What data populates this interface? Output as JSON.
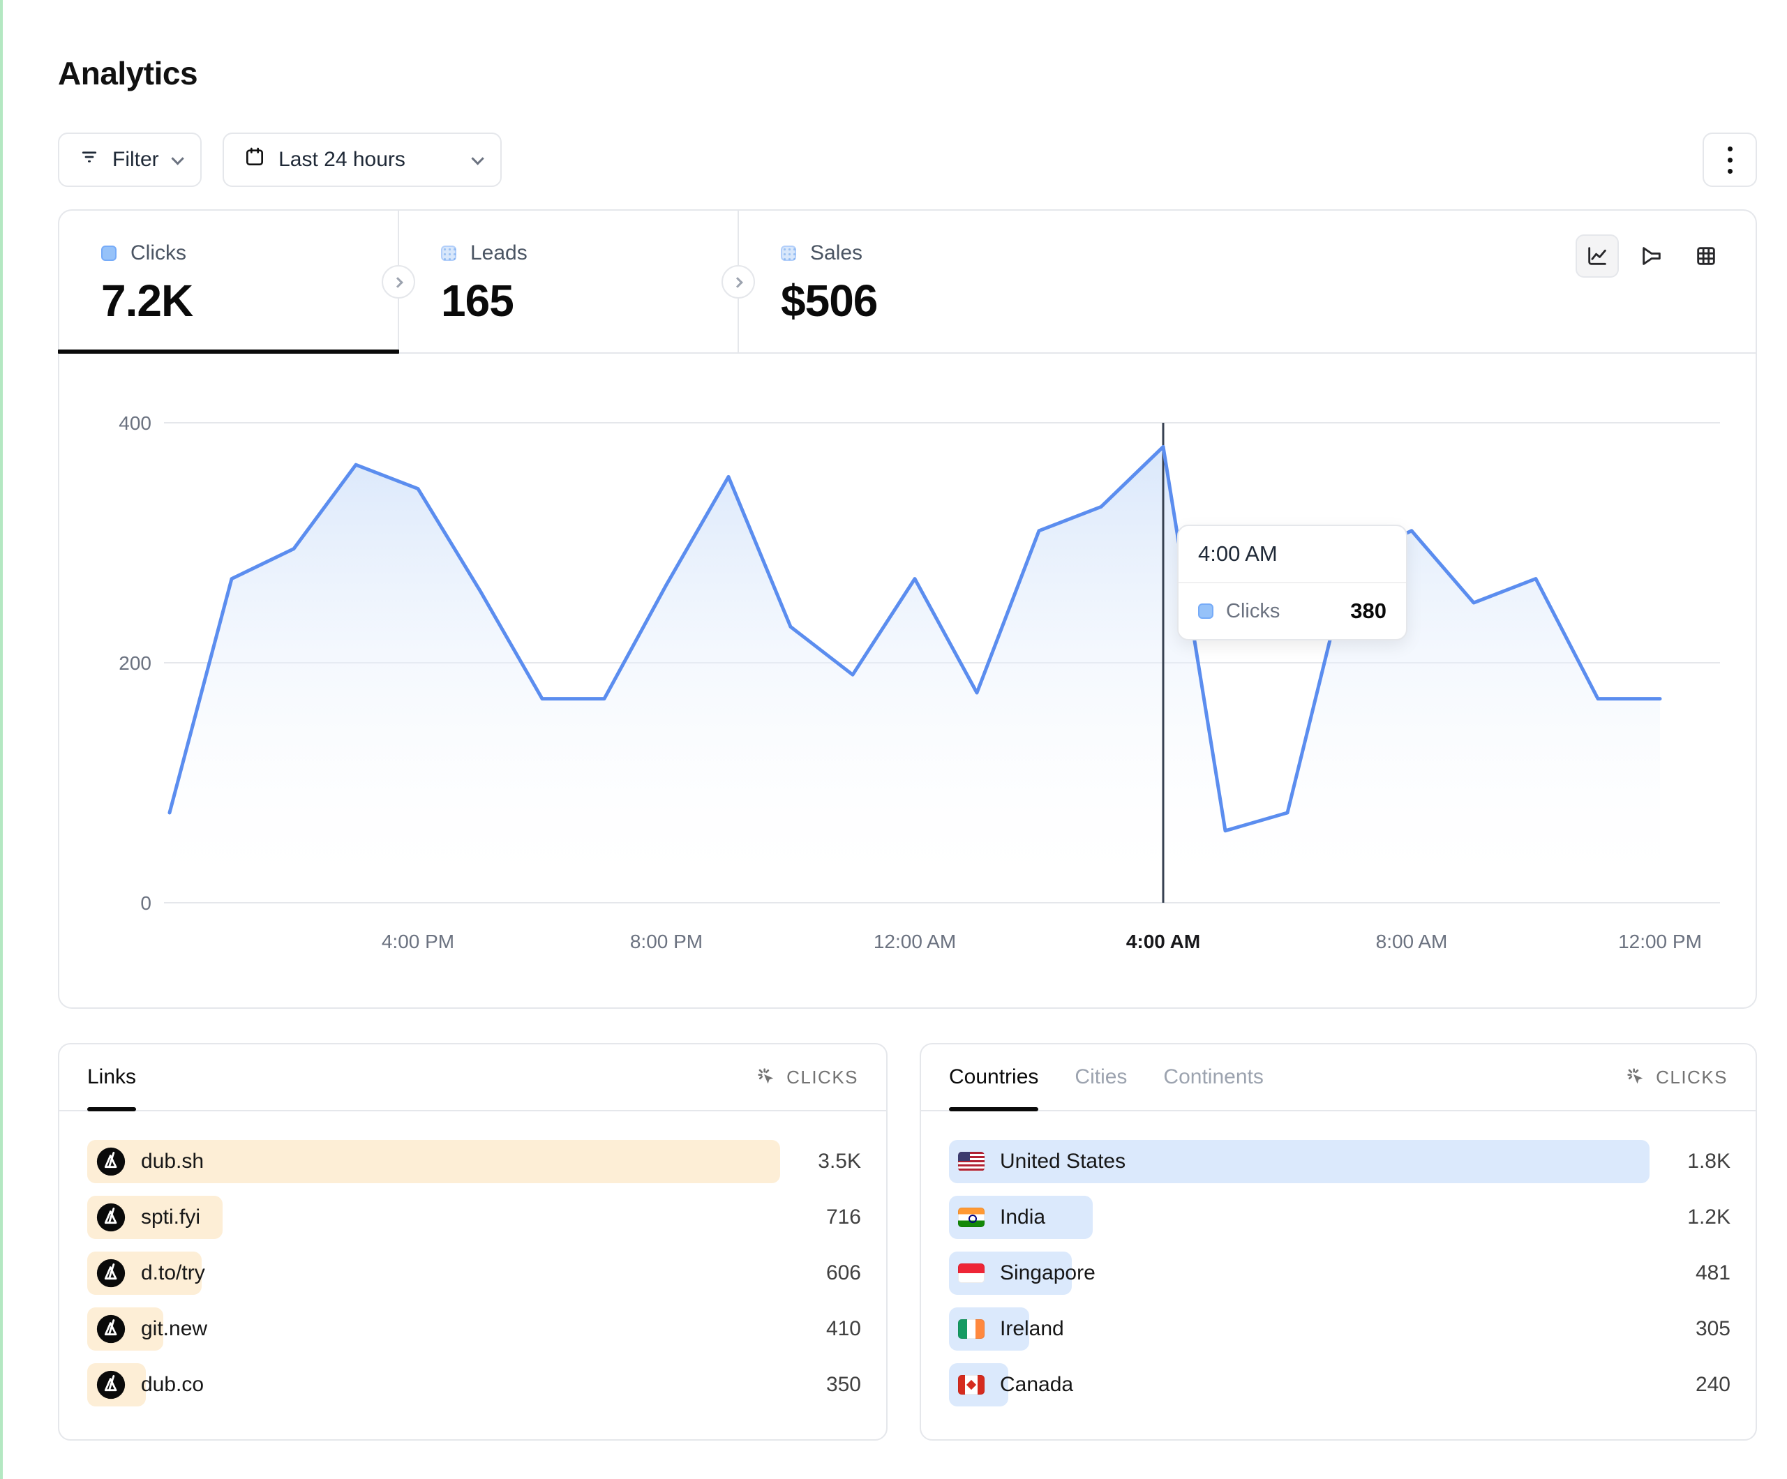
{
  "page": {
    "title": "Analytics"
  },
  "toolbar": {
    "filter_label": "Filter",
    "filter_icon": "filter-lines-icon",
    "date_range_label": "Last 24 hours",
    "date_range_icon": "calendar-icon",
    "menu_icon": "kebab-menu-icon"
  },
  "stats": [
    {
      "label": "Clicks",
      "value": "7.2K",
      "active": true
    },
    {
      "label": "Leads",
      "value": "165",
      "active": false
    },
    {
      "label": "Sales",
      "value": "$506",
      "active": false
    }
  ],
  "chart_toolbar": {
    "icons": [
      "line-chart-icon",
      "funnel-chart-icon",
      "table-grid-icon"
    ],
    "active": "line-chart-icon"
  },
  "chart_data": {
    "type": "area",
    "series_name": "Clicks",
    "x": [
      "12:00 PM",
      "1:00 PM",
      "2:00 PM",
      "3:00 PM",
      "4:00 PM",
      "5:00 PM",
      "6:00 PM",
      "7:00 PM",
      "8:00 PM",
      "9:00 PM",
      "10:00 PM",
      "11:00 PM",
      "12:00 AM",
      "1:00 AM",
      "2:00 AM",
      "3:00 AM",
      "4:00 AM",
      "5:00 AM",
      "6:00 AM",
      "7:00 AM",
      "8:00 AM",
      "9:00 AM",
      "10:00 AM",
      "11:00 AM",
      "12:00 PM"
    ],
    "values": [
      75,
      270,
      295,
      365,
      345,
      260,
      170,
      170,
      265,
      355,
      230,
      190,
      270,
      175,
      310,
      330,
      380,
      60,
      75,
      285,
      310,
      250,
      270,
      170,
      170
    ],
    "y_ticks": [
      0,
      200,
      400
    ],
    "ylim": [
      0,
      400
    ],
    "x_tick_indices": [
      4,
      8,
      12,
      16,
      20,
      24
    ],
    "grid": "horizontal",
    "highlight_index": 16,
    "tooltip": {
      "title": "4:00 AM",
      "series": "Clicks",
      "value": "380"
    },
    "line_color": "#5b8def",
    "area_color_top": "#d3e3fa"
  },
  "links_panel": {
    "tab_label": "Links",
    "metric_label": "CLICKS",
    "metric_icon": "cursor-click-icon",
    "row_icon": "dub-logo-icon",
    "bar_color": "#fdeed6",
    "rows": [
      {
        "label": "dub.sh",
        "value": "3.5K",
        "pct": 100
      },
      {
        "label": "spti.fyi",
        "value": "716",
        "pct": 19.5
      },
      {
        "label": "d.to/try",
        "value": "606",
        "pct": 16.5
      },
      {
        "label": "git.new",
        "value": "410",
        "pct": 11
      },
      {
        "label": "dub.co",
        "value": "350",
        "pct": 8.5
      }
    ]
  },
  "countries_panel": {
    "tabs": [
      "Countries",
      "Cities",
      "Continents"
    ],
    "active_tab": "Countries",
    "metric_label": "CLICKS",
    "metric_icon": "cursor-click-icon",
    "bar_color": "#dbe9fc",
    "rows": [
      {
        "label": "United States",
        "value": "1.8K",
        "pct": 100,
        "flag": "us"
      },
      {
        "label": "India",
        "value": "1.2K",
        "pct": 20.5,
        "flag": "in"
      },
      {
        "label": "Singapore",
        "value": "481",
        "pct": 17.5,
        "flag": "sg"
      },
      {
        "label": "Ireland",
        "value": "305",
        "pct": 11.5,
        "flag": "ie"
      },
      {
        "label": "Canada",
        "value": "240",
        "pct": 8.5,
        "flag": "ca"
      }
    ]
  }
}
